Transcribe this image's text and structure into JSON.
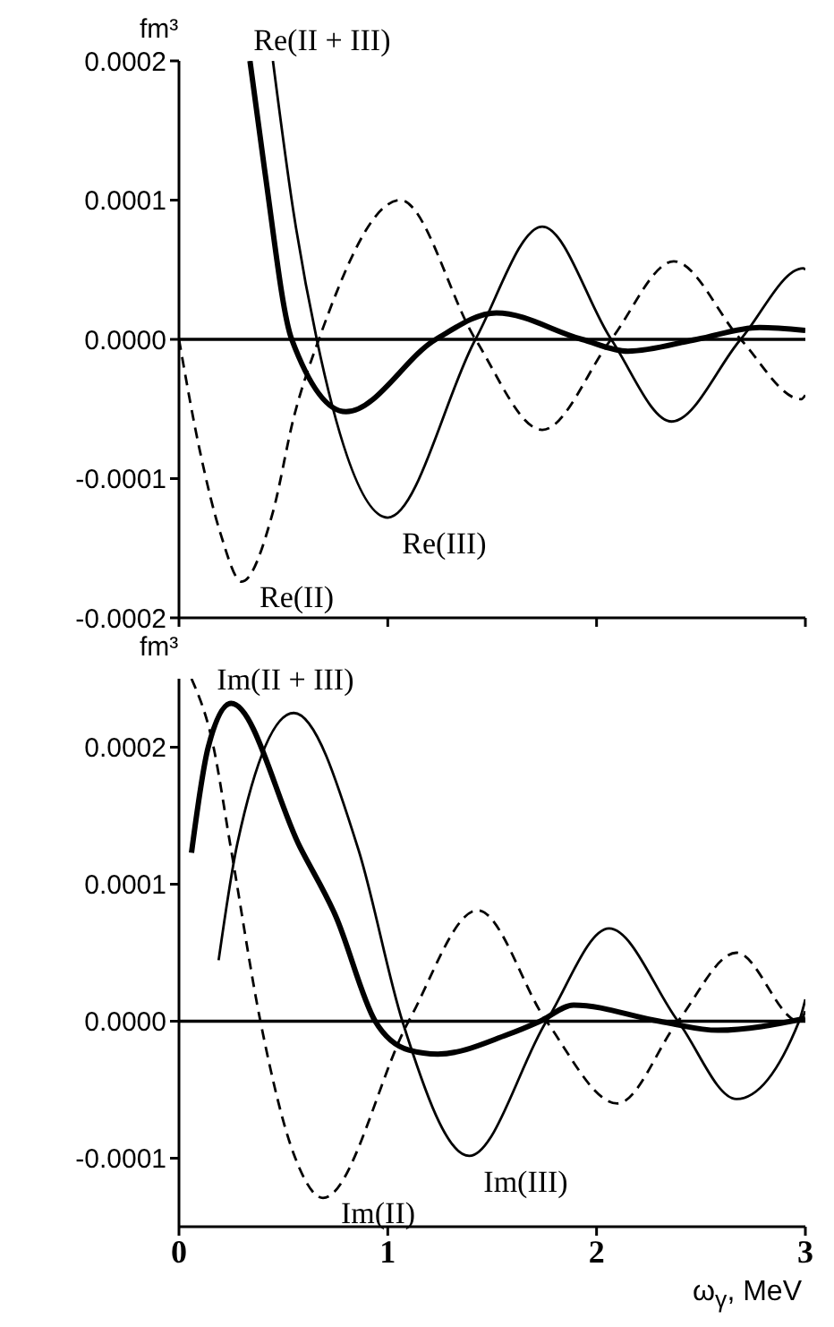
{
  "chart_data": [
    {
      "type": "line",
      "ylabel": "fm³",
      "tick_labels": "y",
      "xlim": [
        0,
        3
      ],
      "xticks": [
        0,
        1,
        2,
        3
      ],
      "ylim": [
        -0.0002,
        0.0002
      ],
      "yticks": [
        -0.0002,
        -0.0001,
        {
          "value": 0,
          "label": "0.0000"
        },
        0.0001,
        0.0002
      ],
      "ref_lines": [
        {
          "axis": "y",
          "value": 0
        }
      ],
      "series": [
        {
          "name": "Re(II)",
          "color": "#000000",
          "line_style": "dashed",
          "x": [
            0,
            0.1,
            0.2,
            0.3,
            0.45,
            0.55,
            0.67,
            1.06,
            1.42,
            1.74,
            2.07,
            2.37,
            2.69,
            2.98,
            3.0
          ],
          "values": [
            0,
            -8e-05,
            -0.00014,
            -0.000174,
            -0.000124,
            -5.6e-05,
            0,
            0.0001,
            0,
            -6.5e-05,
            0,
            5.6e-05,
            0,
            -4.3e-05,
            -4e-05
          ]
        },
        {
          "name": "Re(III)",
          "color": "#000000",
          "line_style": "solid",
          "x": [
            0.45,
            0.55,
            0.66,
            1.0,
            1.42,
            1.74,
            2.07,
            2.36,
            2.69,
            2.99,
            3.0
          ],
          "values": [
            0.0002,
            9e-05,
            0,
            -0.000128,
            0,
            8.1e-05,
            0,
            -5.9e-05,
            0,
            5.1e-05,
            5e-05
          ]
        },
        {
          "name": "Re(II + III)",
          "color": "#000000",
          "line_style": "solid",
          "x": [
            0.34,
            0.41,
            0.54,
            0.8,
            1.23,
            1.52,
            1.93,
            2.15,
            2.48,
            2.78,
            3.0
          ],
          "values": [
            0.0002,
            0.000122,
            0,
            -5.2e-05,
            0,
            1.9e-05,
            0,
            -8.5e-06,
            0,
            8.5e-06,
            6.4e-06
          ]
        }
      ]
    },
    {
      "type": "line",
      "ylabel": "fm³",
      "xlabel": "ω$_{γ}$, MeV",
      "xlim": [
        0,
        3
      ],
      "xticks": [
        0,
        1,
        2,
        3
      ],
      "ylim": [
        -0.00015,
        0.00025
      ],
      "yticks": [
        -0.0001,
        {
          "value": 0,
          "label": "0.0000"
        },
        0.0001,
        0.0002
      ],
      "ref_lines": [
        {
          "axis": "y",
          "value": 0
        }
      ],
      "series": [
        {
          "name": "Im(II)",
          "color": "#000000",
          "line_style": "dashed",
          "x": [
            0.06,
            0.16,
            0.25,
            0.39,
            0.55,
            0.69,
            1.1,
            1.43,
            1.76,
            2.1,
            2.39,
            2.67,
            2.97,
            3.0
          ],
          "values": [
            0.00025,
            0.000204,
            0.000125,
            0,
            -9.7e-05,
            -0.000129,
            0,
            8.1e-05,
            0,
            -6e-05,
            0,
            5e-05,
            0,
            7.4e-06
          ]
        },
        {
          "name": "Im(III)",
          "color": "#000000",
          "line_style": "solid",
          "x": [
            0.19,
            0.28,
            0.55,
            0.86,
            1.07,
            1.39,
            1.76,
            2.06,
            2.39,
            2.67,
            2.97,
            3.0
          ],
          "values": [
            4.45e-05,
            0.00013,
            0.000225,
            0.000125,
            0,
            -9.83e-05,
            0,
            6.77e-05,
            0,
            -5.68e-05,
            0,
            1.6e-05
          ]
        },
        {
          "name": "Im(II + III)",
          "color": "#000000",
          "line_style": "solid",
          "x": [
            0.06,
            0.14,
            0.25,
            0.58,
            0.75,
            0.94,
            1.1,
            1.24,
            1.57,
            1.73,
            1.89,
            2.3,
            2.58,
            3.0
          ],
          "values": [
            0.000123,
            0.0002,
            0.000232,
            0.000127,
            7.7e-05,
            0,
            -2.1e-05,
            -2.4e-05,
            -1e-05,
            0,
            1.18e-05,
            0,
            -6.6e-06,
            2e-06
          ]
        }
      ]
    }
  ]
}
